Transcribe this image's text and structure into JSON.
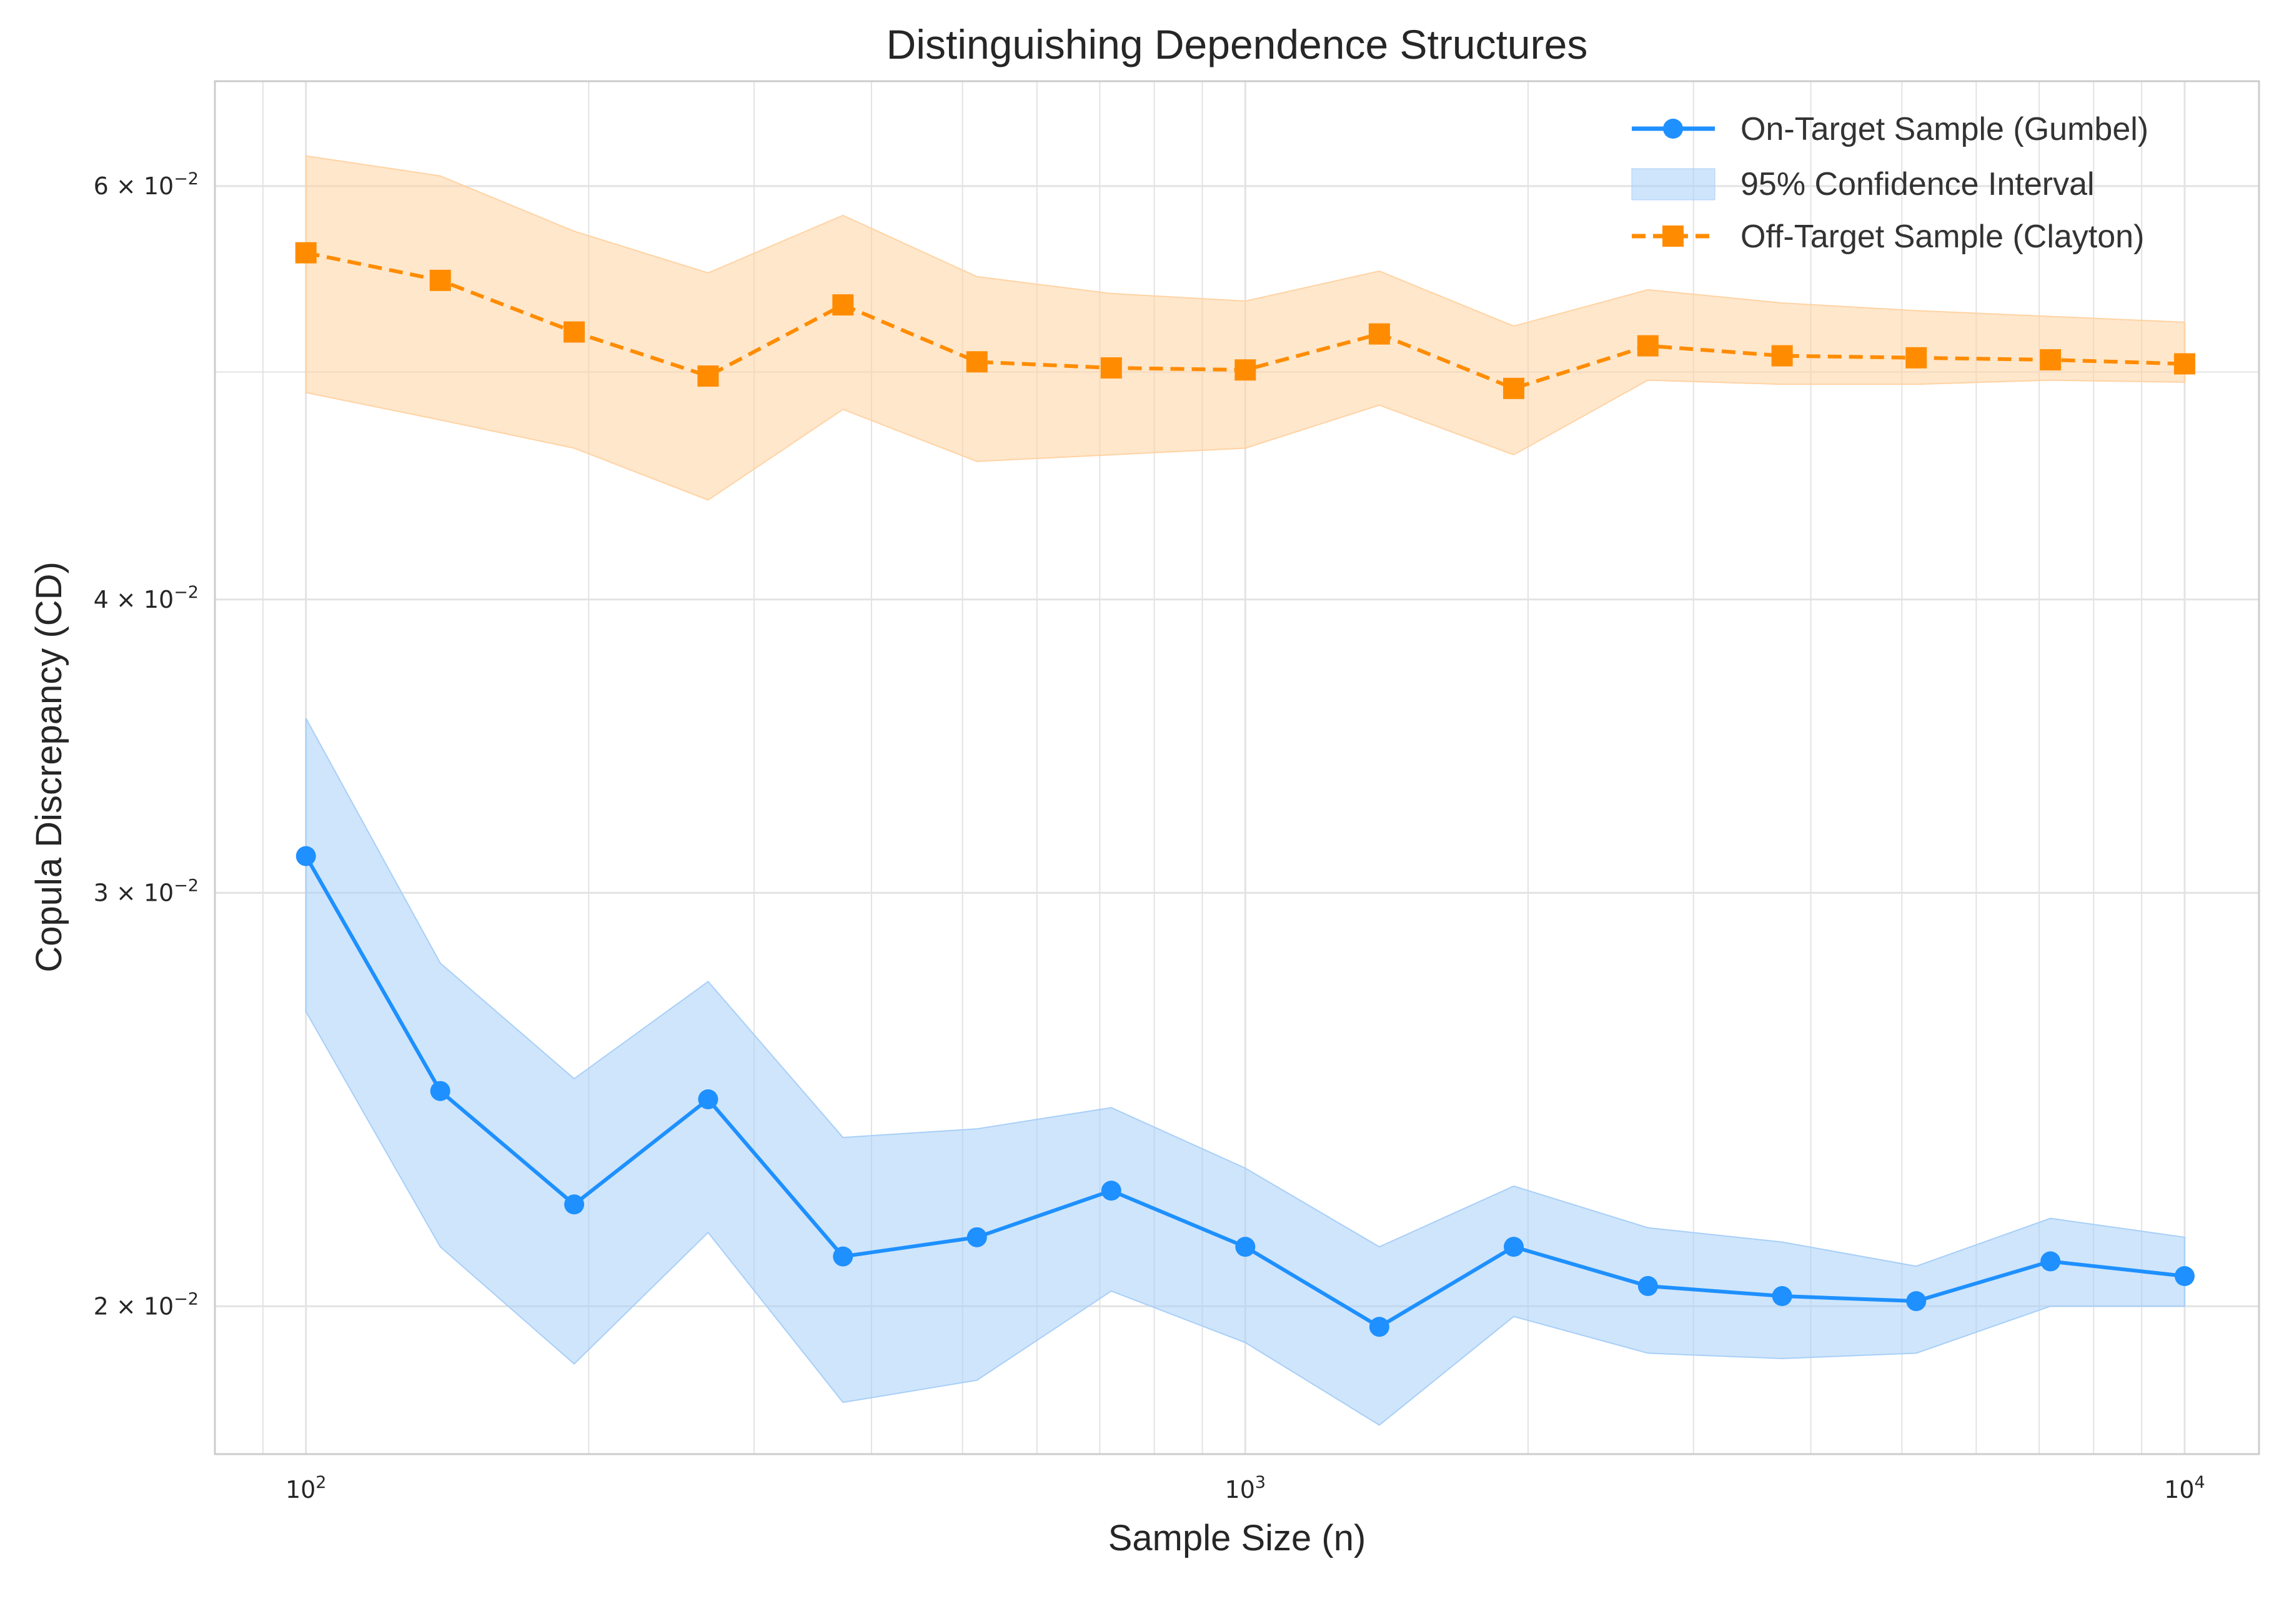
{
  "chart_data": {
    "type": "line",
    "title": "Distinguishing Dependence Structures",
    "xlabel": "Sample Size (n)",
    "ylabel": "Copula Discrepancy (CD)",
    "xscale": "log",
    "yscale": "log",
    "xlim": [
      80,
      12000
    ],
    "ylim": [
      0.0173,
      0.0665
    ],
    "grid": true,
    "legend_position": "top-right",
    "x": [
      100,
      139,
      193,
      268,
      373,
      518,
      720,
      1000,
      1389,
      1931,
      2683,
      3728,
      5179,
      7197,
      10000
    ],
    "series": [
      {
        "name": "On-Target Sample (Gumbel)",
        "color": "#1E90FF",
        "linestyle": "solid",
        "marker": "circle",
        "values": [
          0.0311,
          0.0247,
          0.0221,
          0.0245,
          0.021,
          0.0214,
          0.0224,
          0.0212,
          0.0196,
          0.0212,
          0.0204,
          0.0202,
          0.0201,
          0.0209,
          0.0206
        ],
        "ci_lower": [
          0.0267,
          0.0212,
          0.0189,
          0.0215,
          0.0182,
          0.0186,
          0.0203,
          0.0193,
          0.0178,
          0.0198,
          0.0191,
          0.019,
          0.0191,
          0.02,
          0.02
        ],
        "ci_upper": [
          0.0356,
          0.028,
          0.025,
          0.0275,
          0.0236,
          0.0238,
          0.0243,
          0.0229,
          0.0212,
          0.0225,
          0.0216,
          0.0213,
          0.0208,
          0.0218,
          0.0214
        ]
      },
      {
        "name": "Off-Target Sample (Clayton)",
        "color": "#FF8C00",
        "linestyle": "dashed",
        "marker": "square",
        "values": [
          0.0562,
          0.0547,
          0.052,
          0.0498,
          0.0534,
          0.0505,
          0.0502,
          0.0501,
          0.0519,
          0.0492,
          0.0513,
          0.0508,
          0.0507,
          0.0506,
          0.0504
        ],
        "ci_lower": [
          0.049,
          0.0477,
          0.0464,
          0.0441,
          0.0482,
          0.0458,
          0.0461,
          0.0464,
          0.0484,
          0.0461,
          0.0496,
          0.0494,
          0.0494,
          0.0496,
          0.0495
        ],
        "ci_upper": [
          0.0618,
          0.0606,
          0.0574,
          0.0551,
          0.0583,
          0.0549,
          0.054,
          0.0536,
          0.0552,
          0.0523,
          0.0542,
          0.0535,
          0.0531,
          0.0528,
          0.0525
        ]
      }
    ],
    "ci_label": "95% Confidence Interval",
    "x_ticks": [
      {
        "value": 100,
        "base": "10",
        "exp": "2"
      },
      {
        "value": 1000,
        "base": "10",
        "exp": "3"
      },
      {
        "value": 10000,
        "base": "10",
        "exp": "4"
      }
    ],
    "y_ticks": [
      {
        "value": 0.02,
        "mant": "2",
        "base": "10",
        "exp": "−2"
      },
      {
        "value": 0.03,
        "mant": "3",
        "base": "10",
        "exp": "−2"
      },
      {
        "value": 0.04,
        "mant": "4",
        "base": "10",
        "exp": "−2"
      },
      {
        "value": 0.06,
        "mant": "6",
        "base": "10",
        "exp": "−2"
      }
    ],
    "y_minor_grid": [
      0.05
    ]
  },
  "colors": {
    "blue": "#1E90FF",
    "blue_fill": "#A8CFF8",
    "orange": "#FF8C00",
    "orange_fill": "#FFD3A3",
    "grid": "#E3E3E3",
    "frame": "#CCCCCC"
  }
}
